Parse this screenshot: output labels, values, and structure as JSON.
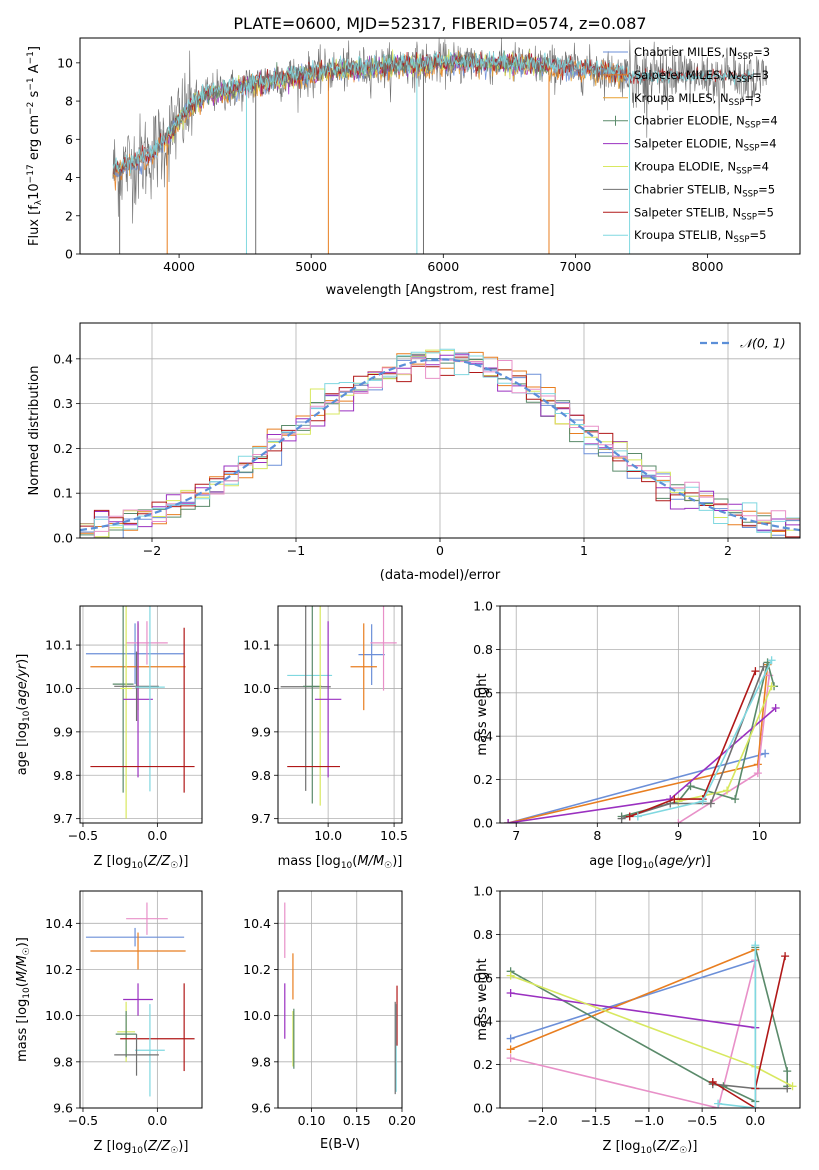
{
  "figure_title": "PLATE=0600, MJD=52317, FIBERID=0574, z=0.087",
  "colors": {
    "Chabrier MILES": "#6b8fd8",
    "Salpeter MILES": "#e87e20",
    "Kroupa MILES": "#e8a030",
    "Chabrier ELODIE": "#5a8a6a",
    "Salpeter ELODIE": "#9a30c0",
    "Kroupa ELODIE": "#d8e860",
    "Chabrier STELIB": "#707070",
    "Salpeter STELIB": "#b01818",
    "Kroupa STELIB": "#80d8e0",
    "normal": "#5b8fd8",
    "pink": "#e890c8",
    "grid": "#b0b0b0"
  },
  "chart_data": [
    {
      "id": "spectrum",
      "type": "line",
      "title": "PLATE=0600, MJD=52317, FIBERID=0574, z=0.087",
      "xlabel": "wavelength [Angstrom, rest frame]",
      "ylabel": "Flux [f_λ 10^-17 erg cm^-2 s^-1 A^-1]",
      "xlim": [
        3250,
        8700
      ],
      "ylim": [
        0,
        11.3
      ],
      "xticks": [
        4000,
        5000,
        6000,
        7000,
        8000
      ],
      "yticks": [
        0,
        2,
        4,
        6,
        8,
        10
      ],
      "grid": false,
      "legend_position": "top-right",
      "legend": [
        {
          "base": "Chabrier MILES, N",
          "n": "3"
        },
        {
          "base": "Salpeter MILES, N",
          "n": "3"
        },
        {
          "base": "Kroupa MILES, N",
          "n": "3"
        },
        {
          "base": "Chabrier ELODIE, N",
          "n": "4"
        },
        {
          "base": "Salpeter ELODIE, N",
          "n": "4"
        },
        {
          "base": "Kroupa ELODIE, N",
          "n": "4"
        },
        {
          "base": "Chabrier STELIB, N",
          "n": "5"
        },
        {
          "base": "Salpeter STELIB, N",
          "n": "5"
        },
        {
          "base": "Kroupa STELIB, N",
          "n": "5"
        }
      ],
      "legend_sub": "SSP",
      "continuum": [
        [
          3500,
          4.3
        ],
        [
          3600,
          4.6
        ],
        [
          3700,
          4.9
        ],
        [
          3800,
          5.3
        ],
        [
          3900,
          6.0
        ],
        [
          4000,
          7.0
        ],
        [
          4100,
          7.8
        ],
        [
          4200,
          8.3
        ],
        [
          4300,
          8.5
        ],
        [
          4400,
          8.6
        ],
        [
          4600,
          8.9
        ],
        [
          4800,
          9.2
        ],
        [
          5000,
          9.4
        ],
        [
          5200,
          9.6
        ],
        [
          5400,
          9.7
        ],
        [
          5600,
          9.8
        ],
        [
          5800,
          9.9
        ],
        [
          6000,
          10.0
        ],
        [
          6200,
          10.0
        ],
        [
          6400,
          10.0
        ],
        [
          6600,
          9.9
        ],
        [
          6800,
          9.8
        ],
        [
          7000,
          9.7
        ],
        [
          7200,
          9.6
        ],
        [
          7400,
          9.4
        ]
      ],
      "observed_end": 8450,
      "absorption": [
        [
          3550,
          0
        ],
        [
          3910,
          0
        ],
        [
          4510,
          0
        ],
        [
          4580,
          0
        ],
        [
          5130,
          0
        ],
        [
          5800,
          0
        ],
        [
          5850,
          0
        ],
        [
          6800,
          0
        ],
        [
          7410,
          0
        ]
      ]
    },
    {
      "id": "residuals",
      "type": "step",
      "xlabel": "(data-model)/error",
      "ylabel": "Normed distribution",
      "xlim": [
        -2.5,
        2.5
      ],
      "ylim": [
        0,
        0.48
      ],
      "xticks": [
        -2,
        -1,
        0,
        1,
        2
      ],
      "yticks": [
        0.0,
        0.1,
        0.2,
        0.3,
        0.4
      ],
      "grid": true,
      "legend_position": "top-right",
      "legend_label": "𝒩(0, 1)",
      "bin_width": 0.1
    },
    {
      "id": "z-age",
      "type": "errorbar",
      "xlabel": "Z [log10(Z/Z☉)]",
      "ylabel": "age [log10(age/yr)]",
      "xlim": [
        -0.52,
        0.3
      ],
      "ylim": [
        9.69,
        10.19
      ],
      "xticks": [
        -0.5,
        0.0
      ],
      "yticks": [
        9.7,
        9.8,
        9.9,
        10.0,
        10.1
      ],
      "grid": true,
      "points": [
        {
          "c": "Chabrier MILES",
          "x": -0.15,
          "y": 10.08,
          "xe": 0.33,
          "ye": 0.07
        },
        {
          "c": "Salpeter MILES",
          "x": -0.13,
          "y": 10.05,
          "xe": 0.32,
          "ye": 0.1
        },
        {
          "c": "pink",
          "x": -0.07,
          "y": 10.105,
          "xe": 0.14,
          "ye": 0.05
        },
        {
          "c": "Chabrier ELODIE",
          "x": -0.23,
          "y": 10.01,
          "xe": 0.07,
          "ye": 0.25
        },
        {
          "c": "Kroupa ELODIE",
          "x": -0.21,
          "y": 10.0,
          "xe": 0.04,
          "ye": 0.3
        },
        {
          "c": "Salpeter ELODIE",
          "x": -0.13,
          "y": 9.975,
          "xe": 0.1,
          "ye": 0.18
        },
        {
          "c": "Chabrier STELIB",
          "x": -0.14,
          "y": 10.005,
          "xe": 0.15,
          "ye": 0.08
        },
        {
          "c": "Kroupa STELIB",
          "x": -0.05,
          "y": 10.003,
          "xe": 0.1,
          "ye": 0.24
        },
        {
          "c": "Salpeter STELIB",
          "x": -0.1,
          "y": 9.82,
          "xe": 0.35,
          "ye": 0.0
        },
        {
          "c": "Salpeter STELIB",
          "x": 0.18,
          "y": 9.95,
          "xe": 0.0,
          "ye": 0.19
        }
      ]
    },
    {
      "id": "mass-age",
      "type": "errorbar",
      "xlabel": "mass [log10(M/M☉)]",
      "ylabel": "",
      "xlim": [
        9.62,
        10.56
      ],
      "ylim": [
        9.69,
        10.19
      ],
      "xticks": [
        10.0,
        10.5
      ],
      "yticks": [
        9.7,
        9.8,
        9.9,
        10.0,
        10.1
      ],
      "grid": true,
      "points": [
        {
          "c": "Chabrier MILES",
          "x": 10.33,
          "y": 10.078,
          "xe": 0.1,
          "ye": 0.07
        },
        {
          "c": "Salpeter MILES",
          "x": 10.27,
          "y": 10.05,
          "xe": 0.1,
          "ye": 0.1
        },
        {
          "c": "pink",
          "x": 10.42,
          "y": 10.105,
          "xe": 0.1,
          "ye": 0.11
        },
        {
          "c": "Kroupa STELIB",
          "x": 9.86,
          "y": 10.03,
          "xe": 0.17,
          "ye": 0.0
        },
        {
          "c": "Chabrier STELIB",
          "x": 9.83,
          "y": 10.004,
          "xe": 0.19,
          "ye": 0.24
        },
        {
          "c": "Chabrier ELODIE",
          "x": 9.88,
          "y": 10.005,
          "xe": 0.07,
          "ye": 0.27
        },
        {
          "c": "Kroupa ELODIE",
          "x": 9.94,
          "y": 9.99,
          "xe": 0.0,
          "ye": 0.26
        },
        {
          "c": "Salpeter ELODIE",
          "x": 10.0,
          "y": 9.975,
          "xe": 0.1,
          "ye": 0.18
        },
        {
          "c": "Salpeter STELIB",
          "x": 9.89,
          "y": 9.82,
          "xe": 0.2,
          "ye": 0.0
        }
      ]
    },
    {
      "id": "age-weight",
      "type": "line",
      "xlabel": "age [log10(age/yr)]",
      "ylabel": "mass weight",
      "xlim": [
        6.8,
        10.5
      ],
      "ylim": [
        0,
        1.0
      ],
      "xticks": [
        7,
        8,
        9,
        10
      ],
      "yticks": [
        0.0,
        0.2,
        0.4,
        0.6,
        0.8,
        1.0
      ],
      "grid": true,
      "series": [
        {
          "c": "Chabrier MILES",
          "pts": [
            [
              6.9,
              0.0
            ],
            [
              10.07,
              0.32
            ]
          ]
        },
        {
          "c": "Salpeter MILES",
          "pts": [
            [
              6.9,
              0.0
            ],
            [
              9.98,
              0.27
            ],
            [
              10.1,
              0.73
            ]
          ]
        },
        {
          "c": "pink",
          "pts": [
            [
              9.0,
              0.0
            ],
            [
              9.98,
              0.23
            ],
            [
              10.12,
              0.68
            ]
          ]
        },
        {
          "c": "Chabrier ELODIE",
          "pts": [
            [
              8.3,
              0.03
            ],
            [
              9.0,
              0.1
            ],
            [
              9.15,
              0.17
            ],
            [
              9.7,
              0.11
            ],
            [
              10.1,
              0.74
            ],
            [
              10.18,
              0.63
            ]
          ]
        },
        {
          "c": "Salpeter ELODIE",
          "pts": [
            [
              6.9,
              0.0
            ],
            [
              8.9,
              0.11
            ],
            [
              10.2,
              0.53
            ]
          ]
        },
        {
          "c": "Kroupa ELODIE",
          "pts": [
            [
              9.0,
              0.1
            ],
            [
              9.6,
              0.15
            ],
            [
              10.15,
              0.63
            ]
          ]
        },
        {
          "c": "Chabrier STELIB",
          "pts": [
            [
              8.3,
              0.02
            ],
            [
              8.9,
              0.09
            ],
            [
              9.4,
              0.09
            ],
            [
              10.05,
              0.72
            ]
          ]
        },
        {
          "c": "Salpeter STELIB",
          "pts": [
            [
              8.4,
              0.03
            ],
            [
              8.95,
              0.11
            ],
            [
              9.3,
              0.11
            ],
            [
              9.95,
              0.7
            ]
          ]
        },
        {
          "c": "Kroupa STELIB",
          "pts": [
            [
              8.5,
              0.03
            ],
            [
              9.3,
              0.1
            ],
            [
              10.15,
              0.75
            ]
          ]
        }
      ]
    },
    {
      "id": "z-mass",
      "type": "errorbar",
      "xlabel": "Z [log10(Z/Z☉)]",
      "ylabel": "mass [log10(M/M☉)]",
      "xlim": [
        -0.52,
        0.3
      ],
      "ylim": [
        9.6,
        10.54
      ],
      "xticks": [
        -0.5,
        0.0
      ],
      "yticks": [
        9.6,
        9.8,
        10.0,
        10.2,
        10.4
      ],
      "grid": true,
      "points": [
        {
          "c": "pink",
          "x": -0.07,
          "y": 10.42,
          "xe": 0.14,
          "ye": 0.07
        },
        {
          "c": "Chabrier MILES",
          "x": -0.15,
          "y": 10.34,
          "xe": 0.33,
          "ye": 0.04
        },
        {
          "c": "Salpeter MILES",
          "x": -0.13,
          "y": 10.28,
          "xe": 0.32,
          "ye": 0.08
        },
        {
          "c": "Salpeter ELODIE",
          "x": -0.13,
          "y": 10.07,
          "xe": 0.1,
          "ye": 0.07
        },
        {
          "c": "Kroupa ELODIE",
          "x": -0.21,
          "y": 9.93,
          "xe": 0.06,
          "ye": 0.13
        },
        {
          "c": "Chabrier ELODIE",
          "x": -0.21,
          "y": 9.92,
          "xe": 0.07,
          "ye": 0.1
        },
        {
          "c": "Salpeter STELIB",
          "x": 0.0,
          "y": 9.9,
          "xe": 0.25,
          "ye": 0.0
        },
        {
          "c": "Salpeter STELIB",
          "x": 0.18,
          "y": 9.95,
          "xe": 0.0,
          "ye": 0.19
        },
        {
          "c": "Kroupa STELIB",
          "x": -0.05,
          "y": 9.85,
          "xe": 0.1,
          "ye": 0.2
        },
        {
          "c": "Chabrier STELIB",
          "x": -0.14,
          "y": 9.83,
          "xe": 0.15,
          "ye": 0.09
        }
      ]
    },
    {
      "id": "ebv-mass",
      "type": "errorbar",
      "xlabel": "E(B-V)",
      "ylabel": "",
      "xlim": [
        0.063,
        0.2
      ],
      "ylim": [
        9.6,
        10.54
      ],
      "xticks": [
        0.1,
        0.15,
        0.2
      ],
      "yticks": [
        9.6,
        9.8,
        10.0,
        10.2,
        10.4
      ],
      "grid": true,
      "points": [
        {
          "c": "pink",
          "x": 0.0705,
          "y": 10.37,
          "xe": 0.0,
          "ye": 0.12
        },
        {
          "c": "Salpeter MILES",
          "x": 0.0795,
          "y": 10.17,
          "xe": 0.0,
          "ye": 0.1
        },
        {
          "c": "Salpeter ELODIE",
          "x": 0.0705,
          "y": 10.02,
          "xe": 0.0,
          "ye": 0.12
        },
        {
          "c": "Kroupa ELODIE",
          "x": 0.0795,
          "y": 9.9,
          "xe": 0.0,
          "ye": 0.12
        },
        {
          "c": "Chabrier ELODIE",
          "x": 0.0805,
          "y": 9.9,
          "xe": 0.0,
          "ye": 0.13
        },
        {
          "c": "Kroupa STELIB",
          "x": 0.1935,
          "y": 9.86,
          "xe": 0.0,
          "ye": 0.19
        },
        {
          "c": "Chabrier STELIB",
          "x": 0.1925,
          "y": 9.86,
          "xe": 0.0,
          "ye": 0.2
        },
        {
          "c": "Salpeter STELIB",
          "x": 0.1945,
          "y": 10.0,
          "xe": 0.0,
          "ye": 0.13
        }
      ]
    },
    {
      "id": "z-weight",
      "type": "line",
      "xlabel": "Z [log10(Z/Z☉)]",
      "ylabel": "mass weight",
      "xlim": [
        -2.4,
        0.42
      ],
      "ylim": [
        0,
        1.0
      ],
      "xticks": [
        -2.0,
        -1.5,
        -1.0,
        -0.5,
        0.0
      ],
      "yticks": [
        0.0,
        0.2,
        0.4,
        0.6,
        0.8,
        1.0
      ],
      "grid": true,
      "series": [
        {
          "c": "Chabrier MILES",
          "pts": [
            [
              -2.3,
              0.32
            ],
            [
              0.0,
              0.68
            ]
          ]
        },
        {
          "c": "Salpeter MILES",
          "pts": [
            [
              -2.3,
              0.27
            ],
            [
              0.0,
              0.73
            ]
          ]
        },
        {
          "c": "pink",
          "pts": [
            [
              -2.3,
              0.23
            ],
            [
              -0.35,
              0.0
            ],
            [
              0.0,
              0.68
            ]
          ]
        },
        {
          "c": "Chabrier ELODIE",
          "pts": [
            [
              -2.3,
              0.63
            ],
            [
              -0.4,
              0.11
            ],
            [
              -0.3,
              0.1
            ],
            [
              0.0,
              0.03
            ],
            [
              0.0,
              0.74
            ],
            [
              0.3,
              0.17
            ],
            [
              0.3,
              0.1
            ]
          ]
        },
        {
          "c": "Salpeter ELODIE",
          "pts": [
            [
              -2.3,
              0.53
            ],
            [
              0.0,
              0.37
            ]
          ]
        },
        {
          "c": "Kroupa ELODIE",
          "pts": [
            [
              -2.3,
              0.61
            ],
            [
              0.0,
              0.19
            ],
            [
              0.35,
              0.1
            ]
          ]
        },
        {
          "c": "Chabrier STELIB",
          "pts": [
            [
              -0.4,
              0.11
            ],
            [
              0.0,
              0.09
            ],
            [
              0.3,
              0.09
            ]
          ]
        },
        {
          "c": "Salpeter STELIB",
          "pts": [
            [
              -0.4,
              0.12
            ],
            [
              0.0,
              0.0
            ],
            [
              0.0,
              0.09
            ],
            [
              0.28,
              0.7
            ]
          ]
        },
        {
          "c": "Kroupa STELIB",
          "pts": [
            [
              -0.35,
              0.02
            ],
            [
              0.0,
              0.0
            ],
            [
              0.0,
              0.75
            ]
          ]
        }
      ]
    }
  ]
}
